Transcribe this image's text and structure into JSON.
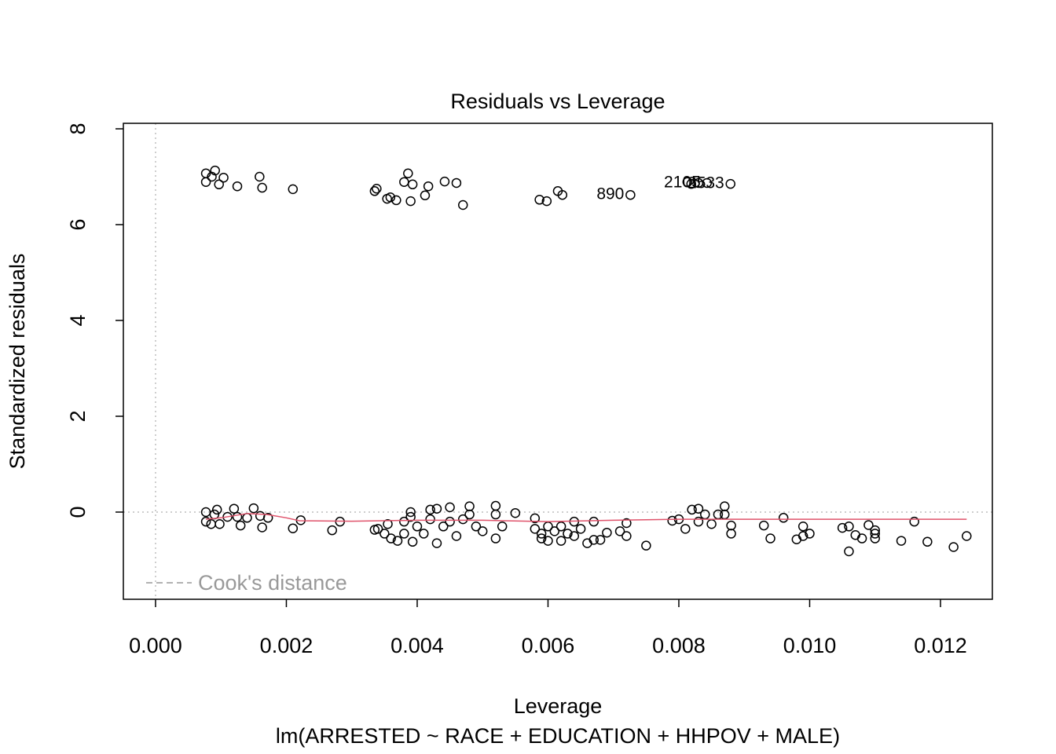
{
  "chart_data": {
    "type": "scatter",
    "title": "Residuals vs Leverage",
    "subtitle": "lm(ARRESTED ~ RACE + EDUCATION + HHPOV + MALE)",
    "x_label": "Leverage",
    "y_label": "Standardized residuals",
    "xlim": [
      -0.000492,
      0.012793
    ],
    "ylim": [
      -1.82,
      8.115
    ],
    "xticks": [
      {
        "value": 0,
        "label": "0.000"
      },
      {
        "value": 0.002,
        "label": "0.002"
      },
      {
        "value": 0.004,
        "label": "0.004"
      },
      {
        "value": 0.006,
        "label": "0.006"
      },
      {
        "value": 0.008,
        "label": "0.008"
      },
      {
        "value": 0.01,
        "label": "0.010"
      },
      {
        "value": 0.012,
        "label": "0.012"
      }
    ],
    "yticks": [
      0,
      2,
      4,
      6,
      8
    ],
    "reference_lines": {
      "h": 0,
      "v": 0,
      "color": "#bebebe"
    },
    "series": [
      {
        "name": "Residuals",
        "color": "#000000",
        "x": [
          0.00077,
          0.00077,
          0.00086,
          0.00091,
          0.00097,
          0.00104,
          0.00125,
          0.00159,
          0.00163,
          0.0021,
          0.00335,
          0.00338,
          0.00354,
          0.00359,
          0.00368,
          0.0038,
          0.00386,
          0.0039,
          0.00393,
          0.00412,
          0.00417,
          0.00442,
          0.0046,
          0.0047,
          0.00587,
          0.00598,
          0.00615,
          0.00622,
          0.00726,
          0.00813,
          0.00819,
          0.0083,
          0.00843,
          0.00879,
          0.00077,
          0.00077,
          0.00085,
          0.0009,
          0.00094,
          0.00098,
          0.0011,
          0.0012,
          0.00125,
          0.0013,
          0.0014,
          0.0015,
          0.0016,
          0.00163,
          0.00172,
          0.0021,
          0.00222,
          0.0027,
          0.00282,
          0.00335,
          0.0034,
          0.0035,
          0.00355,
          0.0036,
          0.0037,
          0.0038,
          0.0038,
          0.0039,
          0.0039,
          0.00393,
          0.004,
          0.0041,
          0.0042,
          0.0042,
          0.0043,
          0.0043,
          0.0044,
          0.0045,
          0.0045,
          0.0046,
          0.0047,
          0.0048,
          0.0048,
          0.0049,
          0.005,
          0.0052,
          0.0052,
          0.0052,
          0.0053,
          0.0055,
          0.0058,
          0.0058,
          0.0059,
          0.0059,
          0.006,
          0.006,
          0.0061,
          0.0062,
          0.0062,
          0.0063,
          0.0064,
          0.0064,
          0.0065,
          0.0066,
          0.0067,
          0.0067,
          0.0068,
          0.0069,
          0.0071,
          0.0072,
          0.0072,
          0.0075,
          0.0079,
          0.008,
          0.0081,
          0.0082,
          0.0083,
          0.0083,
          0.0084,
          0.0085,
          0.0086,
          0.0087,
          0.0087,
          0.0088,
          0.0088,
          0.0093,
          0.0094,
          0.0096,
          0.0098,
          0.0099,
          0.0099,
          0.01,
          0.0105,
          0.0106,
          0.0106,
          0.0107,
          0.0108,
          0.0109,
          0.011,
          0.011,
          0.011,
          0.0114,
          0.0116,
          0.0118,
          0.0122,
          0.0124
        ],
        "values": [
          7.07,
          6.89,
          7.0,
          7.13,
          6.84,
          6.98,
          6.8,
          7.0,
          6.77,
          6.74,
          6.7,
          6.75,
          6.54,
          6.57,
          6.51,
          6.89,
          7.07,
          6.49,
          6.84,
          6.61,
          6.8,
          6.9,
          6.87,
          6.41,
          6.52,
          6.49,
          6.7,
          6.62,
          6.62,
          6.89,
          6.85,
          6.87,
          6.87,
          6.85,
          0.0,
          -0.2,
          -0.25,
          -0.05,
          0.05,
          -0.25,
          -0.1,
          0.07,
          -0.1,
          -0.28,
          -0.12,
          0.08,
          -0.08,
          -0.32,
          -0.12,
          -0.34,
          -0.17,
          -0.38,
          -0.2,
          -0.37,
          -0.35,
          -0.45,
          -0.25,
          -0.55,
          -0.6,
          -0.45,
          -0.2,
          0.0,
          -0.1,
          -0.62,
          -0.3,
          -0.45,
          0.05,
          -0.15,
          0.07,
          -0.65,
          -0.3,
          0.1,
          -0.2,
          -0.5,
          -0.15,
          0.12,
          -0.05,
          -0.3,
          -0.4,
          0.13,
          -0.05,
          -0.55,
          -0.3,
          -0.02,
          -0.13,
          -0.35,
          -0.45,
          -0.55,
          -0.3,
          -0.6,
          -0.4,
          -0.3,
          -0.6,
          -0.45,
          -0.2,
          -0.5,
          -0.35,
          -0.65,
          -0.2,
          -0.58,
          -0.58,
          -0.43,
          -0.4,
          -0.23,
          -0.5,
          -0.7,
          -0.18,
          -0.15,
          -0.35,
          0.05,
          0.07,
          -0.2,
          -0.05,
          -0.25,
          -0.05,
          0.12,
          -0.05,
          -0.45,
          -0.28,
          -0.28,
          -0.55,
          -0.12,
          -0.57,
          -0.3,
          -0.5,
          -0.45,
          -0.33,
          -0.82,
          -0.3,
          -0.48,
          -0.55,
          -0.27,
          -0.45,
          -0.55,
          -0.38,
          -0.6,
          -0.2,
          -0.62,
          -0.73,
          -0.5
        ]
      },
      {
        "name": "Smooth",
        "color": "#DF536B",
        "x": [
          0.00077,
          0.001,
          0.0014,
          0.0017,
          0.002,
          0.0022,
          0.003,
          0.004,
          0.005,
          0.006,
          0.007,
          0.008,
          0.01,
          0.0124
        ],
        "values": [
          -0.15,
          -0.12,
          -0.03,
          -0.05,
          -0.12,
          -0.18,
          -0.19,
          -0.17,
          -0.17,
          -0.2,
          -0.17,
          -0.15,
          -0.15,
          -0.15
        ]
      }
    ],
    "annotations": [
      {
        "text": "890",
        "x": 0.00726,
        "y": 6.62
      },
      {
        "text": "2105",
        "x": 0.00843,
        "y": 6.87
      },
      {
        "text": "2533",
        "x": 0.00879,
        "y": 6.85
      }
    ],
    "legend": {
      "label": "Cook's distance",
      "position": "bottomleft",
      "color": "#999999"
    }
  }
}
